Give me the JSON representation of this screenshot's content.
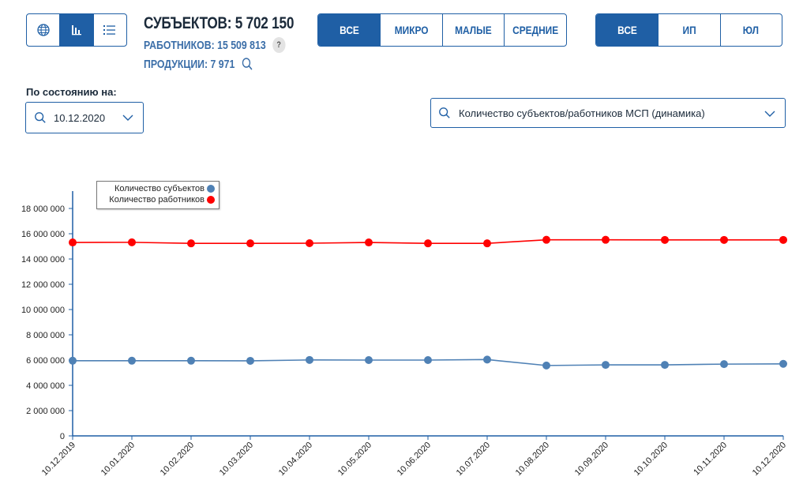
{
  "header": {
    "subjects_label": "СУБЪЕКТОВ: 5 702 150",
    "workers_label": "РАБОТНИКОВ: 15 509 813",
    "products_label": "ПРОДУКЦИИ: 7 971",
    "help_glyph": "?"
  },
  "view_modes": [
    {
      "icon": "globe-icon"
    },
    {
      "icon": "bar-chart-icon",
      "active": true
    },
    {
      "icon": "list-icon"
    }
  ],
  "size_filter": [
    "ВСЕ",
    "МИКРО",
    "МАЛЫЕ",
    "СРЕДНИЕ"
  ],
  "type_filter": [
    "ВСЕ",
    "ИП",
    "ЮЛ"
  ],
  "date_filter": {
    "label": "По состоянию на:",
    "value": "10.12.2020"
  },
  "metric_select": {
    "value": "Количество субъектов/работников МСП (динамика)"
  },
  "colors": {
    "accent": "#1f5fa5",
    "subjects": "#4f81b5",
    "workers": "#ff0000"
  },
  "chart_data": {
    "type": "line",
    "x": [
      "10.12.2019",
      "10.01.2020",
      "10.02.2020",
      "10.03.2020",
      "10.04.2020",
      "10.05.2020",
      "10.06.2020",
      "10.07.2020",
      "10.08.2020",
      "10.09.2020",
      "10.10.2020",
      "10.11.2020",
      "10.12.2020"
    ],
    "series": [
      {
        "name": "Количество субъектов",
        "color": "#4f81b5",
        "values": [
          5950000,
          5950000,
          5950000,
          5940000,
          6010000,
          6000000,
          6000000,
          6040000,
          5570000,
          5620000,
          5620000,
          5680000,
          5702150
        ]
      },
      {
        "name": "Количество работников",
        "color": "#ff0000",
        "values": [
          15310000,
          15320000,
          15240000,
          15240000,
          15250000,
          15310000,
          15240000,
          15240000,
          15520000,
          15520000,
          15510000,
          15510000,
          15509813
        ]
      }
    ],
    "yticks": [
      "0",
      "2 000 000",
      "4 000 000",
      "6 000 000",
      "8 000 000",
      "10 000 000",
      "12 000 000",
      "14 000 000",
      "16 000 000",
      "18 000 000"
    ],
    "ylim": [
      0,
      19000000
    ],
    "legend_position": "top-left"
  }
}
